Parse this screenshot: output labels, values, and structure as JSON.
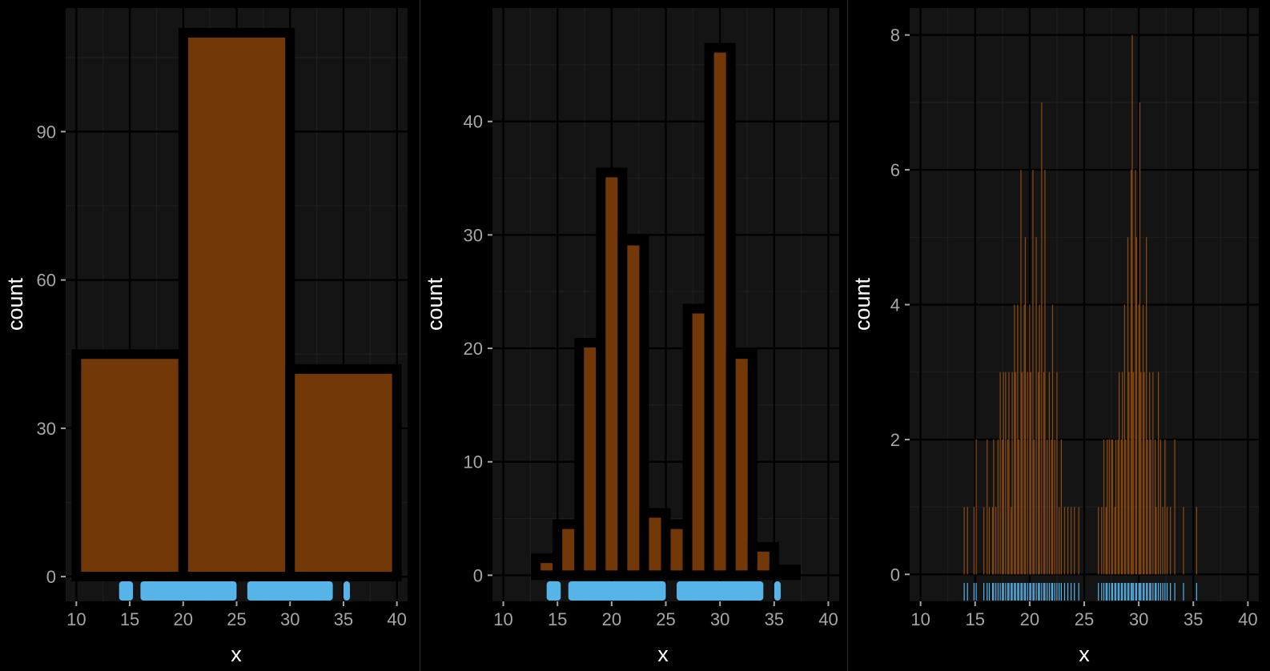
{
  "colors": {
    "background": "#000000",
    "panel": "#141414",
    "grid_major": "#000000",
    "grid_minor": "#1e1e1e",
    "bar_fill": "#753907",
    "bar_outline": "#000000",
    "rug": "#56b4e9",
    "tick": "#a6a6a6",
    "axis_title": "#ffffff",
    "separator": "#2b2b2b"
  },
  "chart_data": [
    {
      "type": "bar",
      "subtype": "histogram",
      "title": "",
      "xlabel": "x",
      "ylabel": "count",
      "xlim": [
        9,
        41
      ],
      "ylim": [
        -5,
        115
      ],
      "x_ticks": [
        10,
        15,
        20,
        25,
        30,
        35,
        40
      ],
      "x_tick_labels": [
        "10",
        "15",
        "20",
        "25",
        "30",
        "35",
        "40"
      ],
      "y_ticks": [
        0,
        30,
        60,
        90
      ],
      "y_tick_labels": [
        "0",
        "30",
        "60",
        "90"
      ],
      "y_minor": [
        15,
        45,
        75,
        105
      ],
      "bin_width": 10,
      "bins": [
        {
          "x_start": 10,
          "x_end": 20,
          "count": 45
        },
        {
          "x_start": 20,
          "x_end": 30,
          "count": 110
        },
        {
          "x_start": 30,
          "x_end": 40,
          "count": 42
        }
      ],
      "grid": true,
      "rug_bands": [
        [
          14,
          15.3
        ],
        [
          16,
          25
        ],
        [
          26,
          34
        ],
        [
          35,
          35.6
        ]
      ]
    },
    {
      "type": "bar",
      "subtype": "histogram",
      "title": "",
      "xlabel": "x",
      "ylabel": "count",
      "xlim": [
        9,
        41
      ],
      "ylim": [
        -2.3,
        50
      ],
      "x_ticks": [
        10,
        15,
        20,
        25,
        30,
        35,
        40
      ],
      "x_tick_labels": [
        "10",
        "15",
        "20",
        "25",
        "30",
        "35",
        "40"
      ],
      "y_ticks": [
        0,
        10,
        20,
        30,
        40
      ],
      "y_tick_labels": [
        "0",
        "10",
        "20",
        "30",
        "40"
      ],
      "y_minor": [
        5,
        15,
        25,
        35,
        45
      ],
      "bin_width": 2,
      "bins": [
        {
          "x_start": 13,
          "x_end": 15,
          "count": 1.5
        },
        {
          "x_start": 15,
          "x_end": 17,
          "count": 4.5
        },
        {
          "x_start": 17,
          "x_end": 19,
          "count": 20.5
        },
        {
          "x_start": 19,
          "x_end": 21,
          "count": 35.5
        },
        {
          "x_start": 21,
          "x_end": 23,
          "count": 29.5
        },
        {
          "x_start": 23,
          "x_end": 25,
          "count": 5.5
        },
        {
          "x_start": 25,
          "x_end": 27,
          "count": 4.5
        },
        {
          "x_start": 27,
          "x_end": 29,
          "count": 23.5
        },
        {
          "x_start": 29,
          "x_end": 31,
          "count": 46.5
        },
        {
          "x_start": 31,
          "x_end": 33,
          "count": 19.5
        },
        {
          "x_start": 33,
          "x_end": 35,
          "count": 2.5
        },
        {
          "x_start": 35,
          "x_end": 37,
          "count": 0.5
        }
      ],
      "grid": true,
      "rug_bands": [
        [
          14,
          15.3
        ],
        [
          16,
          25
        ],
        [
          26,
          34
        ],
        [
          35,
          35.6
        ]
      ]
    },
    {
      "type": "bar",
      "subtype": "histogram",
      "title": "",
      "xlabel": "x",
      "ylabel": "count",
      "xlim": [
        9,
        41
      ],
      "ylim": [
        -0.4,
        8.4
      ],
      "x_ticks": [
        10,
        15,
        20,
        25,
        30,
        35,
        40
      ],
      "x_tick_labels": [
        "10",
        "15",
        "20",
        "25",
        "30",
        "35",
        "40"
      ],
      "y_ticks": [
        0,
        2,
        4,
        6,
        8
      ],
      "y_tick_labels": [
        "0",
        "2",
        "4",
        "6",
        "8"
      ],
      "y_minor": [
        1,
        3,
        5,
        7
      ],
      "bin_width": 0.1,
      "bars": [
        [
          14.0,
          1
        ],
        [
          14.3,
          1
        ],
        [
          14.9,
          1
        ],
        [
          15.1,
          2
        ],
        [
          15.8,
          1
        ],
        [
          16.1,
          2
        ],
        [
          16.3,
          1
        ],
        [
          16.6,
          1
        ],
        [
          16.7,
          2
        ],
        [
          16.9,
          1
        ],
        [
          17.1,
          2
        ],
        [
          17.3,
          3
        ],
        [
          17.5,
          2
        ],
        [
          17.6,
          3
        ],
        [
          17.8,
          3
        ],
        [
          18.0,
          2
        ],
        [
          18.1,
          3
        ],
        [
          18.3,
          1
        ],
        [
          18.4,
          3
        ],
        [
          18.6,
          4
        ],
        [
          18.7,
          3
        ],
        [
          18.9,
          4
        ],
        [
          19.0,
          2
        ],
        [
          19.2,
          6
        ],
        [
          19.3,
          3
        ],
        [
          19.5,
          4
        ],
        [
          19.6,
          5
        ],
        [
          19.8,
          3
        ],
        [
          20.0,
          4
        ],
        [
          20.1,
          3
        ],
        [
          20.3,
          6
        ],
        [
          20.4,
          2
        ],
        [
          20.6,
          5
        ],
        [
          20.8,
          3
        ],
        [
          20.9,
          4
        ],
        [
          21.1,
          7
        ],
        [
          21.3,
          3
        ],
        [
          21.4,
          6
        ],
        [
          21.6,
          2
        ],
        [
          21.8,
          3
        ],
        [
          22.0,
          2
        ],
        [
          22.1,
          4
        ],
        [
          22.3,
          2
        ],
        [
          22.5,
          3
        ],
        [
          22.7,
          1
        ],
        [
          22.9,
          2
        ],
        [
          23.2,
          1
        ],
        [
          23.5,
          1
        ],
        [
          23.8,
          1
        ],
        [
          24.1,
          1
        ],
        [
          24.5,
          1
        ],
        [
          26.3,
          1
        ],
        [
          26.6,
          1
        ],
        [
          26.8,
          2
        ],
        [
          27.0,
          1
        ],
        [
          27.1,
          2
        ],
        [
          27.3,
          2
        ],
        [
          27.5,
          2
        ],
        [
          27.6,
          2
        ],
        [
          27.8,
          1
        ],
        [
          27.9,
          2
        ],
        [
          28.1,
          2
        ],
        [
          28.2,
          3
        ],
        [
          28.4,
          2
        ],
        [
          28.5,
          3
        ],
        [
          28.7,
          4
        ],
        [
          28.8,
          2
        ],
        [
          29.0,
          5
        ],
        [
          29.1,
          3
        ],
        [
          29.3,
          6
        ],
        [
          29.4,
          8
        ],
        [
          29.5,
          3
        ],
        [
          29.7,
          6
        ],
        [
          29.8,
          5
        ],
        [
          30.0,
          4
        ],
        [
          30.1,
          7
        ],
        [
          30.2,
          3
        ],
        [
          30.4,
          4
        ],
        [
          30.5,
          3
        ],
        [
          30.7,
          5
        ],
        [
          30.8,
          2
        ],
        [
          31.0,
          3
        ],
        [
          31.1,
          2
        ],
        [
          31.3,
          3
        ],
        [
          31.5,
          2
        ],
        [
          31.6,
          1
        ],
        [
          31.8,
          3
        ],
        [
          32.0,
          2
        ],
        [
          32.2,
          1
        ],
        [
          32.4,
          2
        ],
        [
          32.6,
          1
        ],
        [
          32.9,
          1
        ],
        [
          33.3,
          2
        ],
        [
          34.1,
          1
        ],
        [
          35.3,
          1
        ]
      ],
      "grid": true,
      "rug_ticks": [
        14.0,
        14.3,
        14.9,
        15.1,
        15.8,
        16.1,
        16.3,
        16.6,
        16.7,
        16.9,
        17.1,
        17.3,
        17.5,
        17.6,
        17.8,
        18.0,
        18.1,
        18.3,
        18.4,
        18.6,
        18.7,
        18.9,
        19.0,
        19.2,
        19.3,
        19.5,
        19.6,
        19.8,
        20.0,
        20.1,
        20.3,
        20.4,
        20.6,
        20.8,
        20.9,
        21.1,
        21.3,
        21.4,
        21.6,
        21.8,
        22.0,
        22.1,
        22.3,
        22.5,
        22.7,
        22.9,
        23.2,
        23.5,
        23.8,
        24.1,
        24.5,
        26.3,
        26.6,
        26.8,
        27.0,
        27.1,
        27.3,
        27.5,
        27.6,
        27.8,
        27.9,
        28.1,
        28.2,
        28.4,
        28.5,
        28.7,
        28.8,
        29.0,
        29.1,
        29.3,
        29.4,
        29.5,
        29.7,
        29.8,
        30.0,
        30.1,
        30.2,
        30.4,
        30.5,
        30.7,
        30.8,
        31.0,
        31.1,
        31.3,
        31.5,
        31.6,
        31.8,
        32.0,
        32.2,
        32.4,
        32.6,
        32.9,
        33.3,
        34.1,
        35.3
      ]
    }
  ]
}
